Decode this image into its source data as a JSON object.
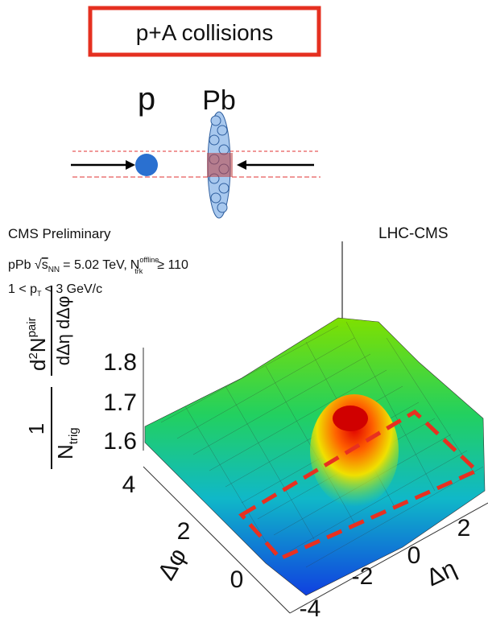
{
  "header": {
    "title": "p+A collisions"
  },
  "collision": {
    "projectile": "p",
    "target": "Pb"
  },
  "plot": {
    "experiment_label": "CMS Preliminary",
    "system_text": "pPb",
    "energy_symbol": "s",
    "energy_sub": "NN",
    "energy_value": "= 5.02 TeV,",
    "mult_symbol": "N",
    "mult_sup": "offline",
    "mult_sub": "trk",
    "mult_cut": "≥ 110",
    "pt_start": "1 < p",
    "pt_sub": "T",
    "pt_end": "< 3 GeV/c",
    "corner_label": "LHC-CMS",
    "zaxis": {
      "one": "1",
      "n_trig": "N",
      "trig_sub": "trig",
      "d": "d",
      "two": "2",
      "n_pair": "N",
      "pair_sup": "pair",
      "denominator": "dΔη dΔφ"
    },
    "zticks": [
      "1.8",
      "1.7",
      "1.6"
    ],
    "phi_ticks": [
      "4",
      "2",
      "0"
    ],
    "eta_ticks": [
      "-4",
      "-2",
      "0",
      "2"
    ],
    "phi_label": "Δφ",
    "eta_label": "Δη"
  }
}
